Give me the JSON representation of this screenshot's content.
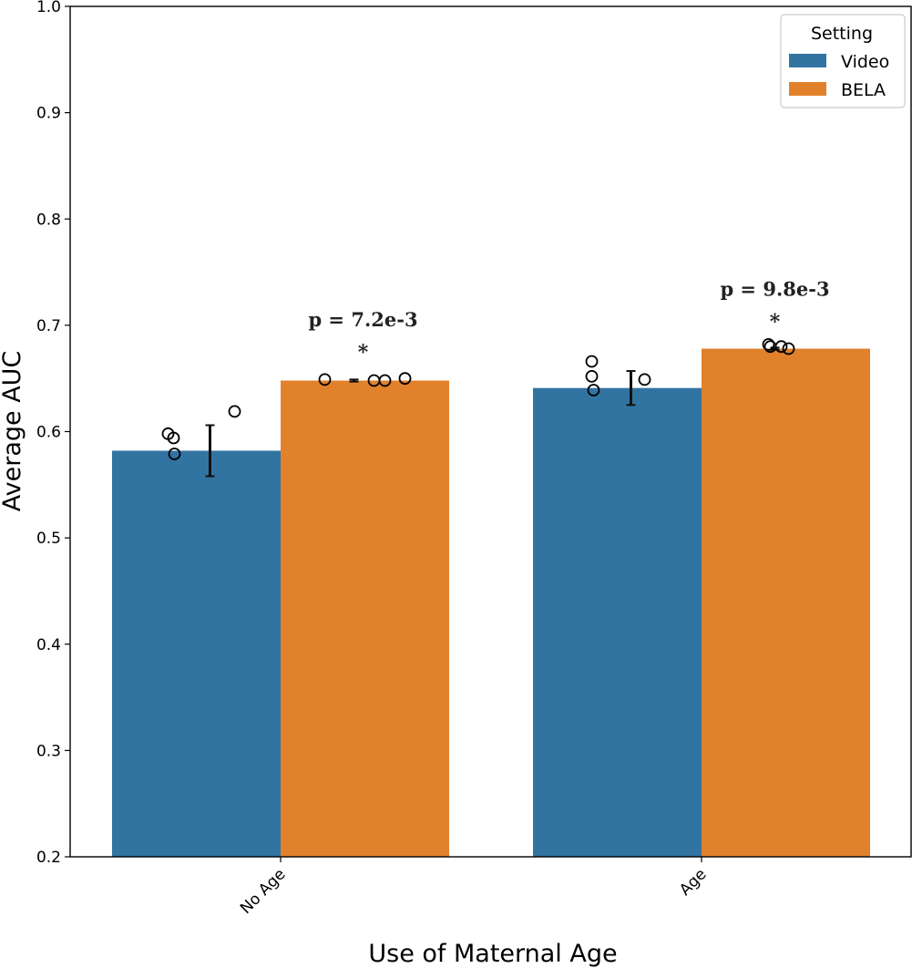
{
  "chart_data": {
    "type": "bar",
    "title": "",
    "xlabel": "Use of Maternal Age",
    "ylabel": "Average AUC",
    "ylim": [
      0.2,
      1.0
    ],
    "yticks": [
      "0.2",
      "0.3",
      "0.4",
      "0.5",
      "0.6",
      "0.7",
      "0.8",
      "0.9",
      "1.0"
    ],
    "categories": [
      "No Age",
      "Age"
    ],
    "legend": {
      "title": "Setting",
      "position": "top-right"
    },
    "series": [
      {
        "name": "Video",
        "color": "#3274a1",
        "values": [
          0.582,
          0.641
        ],
        "error": [
          [
            0.558,
            0.606
          ],
          [
            0.625,
            0.657
          ]
        ],
        "points": [
          [
            0.598,
            0.594,
            0.579,
            0.619
          ],
          [
            0.666,
            0.652,
            0.639,
            0.649
          ]
        ]
      },
      {
        "name": "BELA",
        "color": "#e1812c",
        "values": [
          0.648,
          0.678
        ],
        "error": [
          [
            0.647,
            0.649
          ],
          [
            0.677,
            0.679
          ]
        ],
        "points": [
          [
            0.649,
            0.648,
            0.648,
            0.65
          ],
          [
            0.682,
            0.68,
            0.68,
            0.678
          ]
        ]
      }
    ],
    "annotations": [
      {
        "category": "No Age",
        "text": "p = 7.2e-3",
        "star": "*",
        "y": 0.68
      },
      {
        "category": "Age",
        "text": "p = 9.8e-3",
        "star": "*",
        "y": 0.709
      }
    ]
  }
}
